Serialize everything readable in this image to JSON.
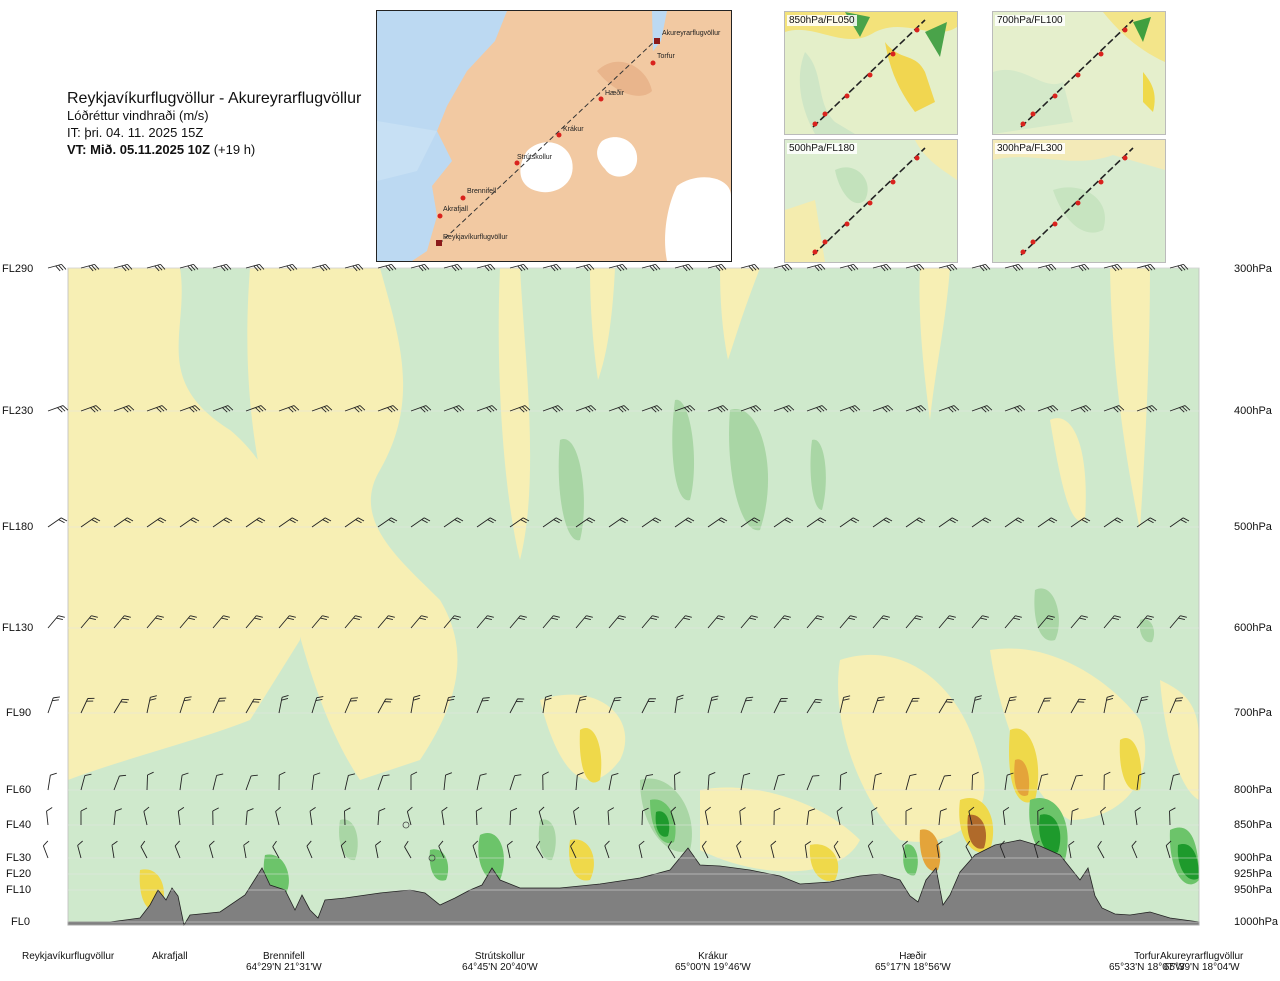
{
  "header": {
    "route": "Reykjavíkurflugvöllur - Akureyrarflugvöllur",
    "variable": "Lóðréttur vindhraði (m/s)",
    "it": "IT: þri. 04. 11. 2025 15Z",
    "vt_bold": "VT: Mið. 05.11.2025 10Z",
    "vt_offset": "(+19 h)"
  },
  "map": {
    "stations": [
      "Akureyrarflugvöllur",
      "Torfur",
      "Hæðir",
      "Krákur",
      "Strútskollur",
      "Brennifell",
      "Akrafjall",
      "Reykjavíkurflugvöllur"
    ]
  },
  "mini_maps": [
    {
      "label": "850hPa/FL050"
    },
    {
      "label": "700hPa/FL100"
    },
    {
      "label": "500hPa/FL180"
    },
    {
      "label": "300hPa/FL300"
    }
  ],
  "colors": {
    "light_green": "#cfe9cc",
    "mid_green": "#a9d6a5",
    "green": "#6cc46a",
    "dark_green": "#1e9a2c",
    "light_yellow": "#f7efb4",
    "yellow": "#efd94a",
    "orange": "#e4a43a",
    "brown": "#b06a2a",
    "terrain": "#808080",
    "water": "#bcd9f2",
    "land": "#f2c9a2"
  },
  "chart_data": {
    "type": "heatmap",
    "title": "Lóðréttur vindhraði (m/s)",
    "levels": [
      {
        "fl": "FL290",
        "hpa": "300hPa"
      },
      {
        "fl": "FL230",
        "hpa": "400hPa"
      },
      {
        "fl": "FL180",
        "hpa": "500hPa"
      },
      {
        "fl": "FL130",
        "hpa": "600hPa"
      },
      {
        "fl": "FL90",
        "hpa": "700hPa"
      },
      {
        "fl": "FL60",
        "hpa": "800hPa"
      },
      {
        "fl": "FL40",
        "hpa": "850hPa"
      },
      {
        "fl": "FL30",
        "hpa": "900hPa"
      },
      {
        "fl": "FL20",
        "hpa": "925hPa"
      },
      {
        "fl": "FL10",
        "hpa": "950hPa"
      },
      {
        "fl": "FL0",
        "hpa": "1000hPa"
      }
    ],
    "stations": [
      {
        "name": "Reykjavíkurflugvöllur",
        "coord": ""
      },
      {
        "name": "Akrafjall",
        "coord": ""
      },
      {
        "name": "Brennifell",
        "coord": "64°29'N 21°31'W"
      },
      {
        "name": "Strútskollur",
        "coord": "64°45'N 20°40'W"
      },
      {
        "name": "Krákur",
        "coord": "65°00'N 19°46'W"
      },
      {
        "name": "Hæðir",
        "coord": "65°17'N 18°56'W"
      },
      {
        "name": "Torfur",
        "coord": "65°33'N 18°07'W"
      },
      {
        "name": "Akureyrarflugvöllur",
        "coord": "65°39'N 18°04'W"
      }
    ]
  }
}
